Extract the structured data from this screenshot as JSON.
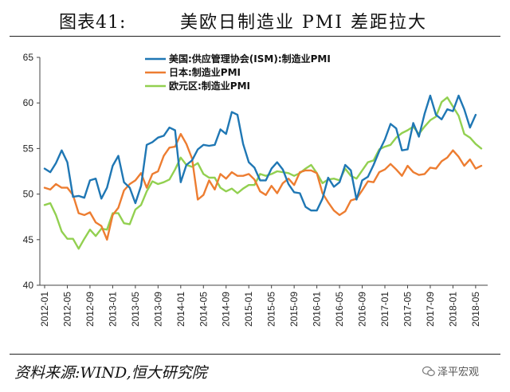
{
  "header": {
    "figure_label": "图表41:",
    "title": "美欧日制造业 PMI 差距拉大"
  },
  "footer": {
    "source": "资料来源:WIND,恒大研究院",
    "watermark": "泽平宏观"
  },
  "colors": {
    "us": "#1f77b4",
    "japan": "#ed7d31",
    "eurozone": "#92d050"
  },
  "chart_data": {
    "type": "line",
    "title": "",
    "xlabel": "",
    "ylabel": "",
    "ylim": [
      40,
      65
    ],
    "yticks": [
      40,
      45,
      50,
      55,
      60,
      65
    ],
    "grid": false,
    "legend_position": "top-center",
    "start_month": "2012-01",
    "x_tick_labels": [
      "2012-01",
      "2012-05",
      "2012-09",
      "2013-01",
      "2013-05",
      "2013-09",
      "2014-01",
      "2014-05",
      "2014-09",
      "2015-01",
      "2015-05",
      "2015-09",
      "2016-01",
      "2016-05",
      "2016-09",
      "2017-01",
      "2017-05",
      "2017-09",
      "2018-01",
      "2018-05"
    ],
    "series": [
      {
        "name": "美国:供应管理协会(ISM):制造业PMI",
        "key": "us",
        "values": [
          52.8,
          52.4,
          53.4,
          54.8,
          53.5,
          49.7,
          49.8,
          49.6,
          51.5,
          51.7,
          49.5,
          50.7,
          53.1,
          54.2,
          51.3,
          50.7,
          49.0,
          50.9,
          55.4,
          55.7,
          56.2,
          56.4,
          57.3,
          57.0,
          51.3,
          53.2,
          53.7,
          54.9,
          55.4,
          55.3,
          55.4,
          57.1,
          56.6,
          59.0,
          58.7,
          55.5,
          53.5,
          52.9,
          51.5,
          51.5,
          52.8,
          53.5,
          52.7,
          51.1,
          50.2,
          50.1,
          48.6,
          48.2,
          48.2,
          49.5,
          51.8,
          50.8,
          51.3,
          53.2,
          52.6,
          49.4,
          51.5,
          51.9,
          53.2,
          54.7,
          56.0,
          57.7,
          57.2,
          54.8,
          54.9,
          57.8,
          56.3,
          58.8,
          60.8,
          58.7,
          58.2,
          59.3,
          59.1,
          60.8,
          59.3,
          57.3,
          58.7
        ]
      },
      {
        "name": "日本:制造业PMI",
        "key": "japan",
        "values": [
          50.7,
          50.5,
          51.1,
          50.7,
          50.7,
          49.9,
          47.9,
          47.7,
          48.0,
          46.9,
          46.5,
          45.0,
          47.7,
          48.5,
          50.4,
          51.1,
          51.5,
          52.3,
          50.7,
          52.2,
          52.5,
          54.2,
          55.1,
          55.2,
          56.6,
          55.5,
          53.9,
          49.4,
          49.9,
          51.5,
          50.5,
          52.2,
          51.7,
          52.4,
          52.0,
          52.0,
          52.2,
          51.6,
          50.3,
          49.9,
          50.9,
          50.1,
          51.2,
          51.7,
          51.0,
          52.4,
          52.6,
          52.6,
          52.3,
          50.1,
          49.1,
          48.2,
          47.7,
          48.1,
          49.3,
          49.5,
          50.4,
          51.4,
          51.3,
          52.4,
          52.7,
          53.3,
          52.7,
          52.0,
          53.1,
          52.4,
          52.1,
          52.2,
          52.9,
          52.8,
          53.6,
          54.0,
          54.8,
          54.1,
          53.1,
          53.8,
          52.8,
          53.1
        ]
      },
      {
        "name": "欧元区:制造业PMI",
        "key": "eurozone",
        "values": [
          48.8,
          49.0,
          47.7,
          45.9,
          45.1,
          45.1,
          44.0,
          45.1,
          46.1,
          45.4,
          46.2,
          46.1,
          47.9,
          47.9,
          46.8,
          46.7,
          48.3,
          48.8,
          50.3,
          51.4,
          51.1,
          51.3,
          51.6,
          52.7,
          54.0,
          53.2,
          53.0,
          53.4,
          52.2,
          51.8,
          51.8,
          50.7,
          50.3,
          50.6,
          50.1,
          50.6,
          51.0,
          51.0,
          52.2,
          52.0,
          52.2,
          52.5,
          52.4,
          52.3,
          52.0,
          52.3,
          52.8,
          53.2,
          52.3,
          51.2,
          51.6,
          51.7,
          51.5,
          52.8,
          52.0,
          51.7,
          52.6,
          53.5,
          53.7,
          54.9,
          55.2,
          55.4,
          56.2,
          56.7,
          57.0,
          57.4,
          56.6,
          57.4,
          58.1,
          58.5,
          60.1,
          60.6,
          59.6,
          58.6,
          56.6,
          56.2,
          55.5,
          55.0
        ]
      }
    ]
  }
}
